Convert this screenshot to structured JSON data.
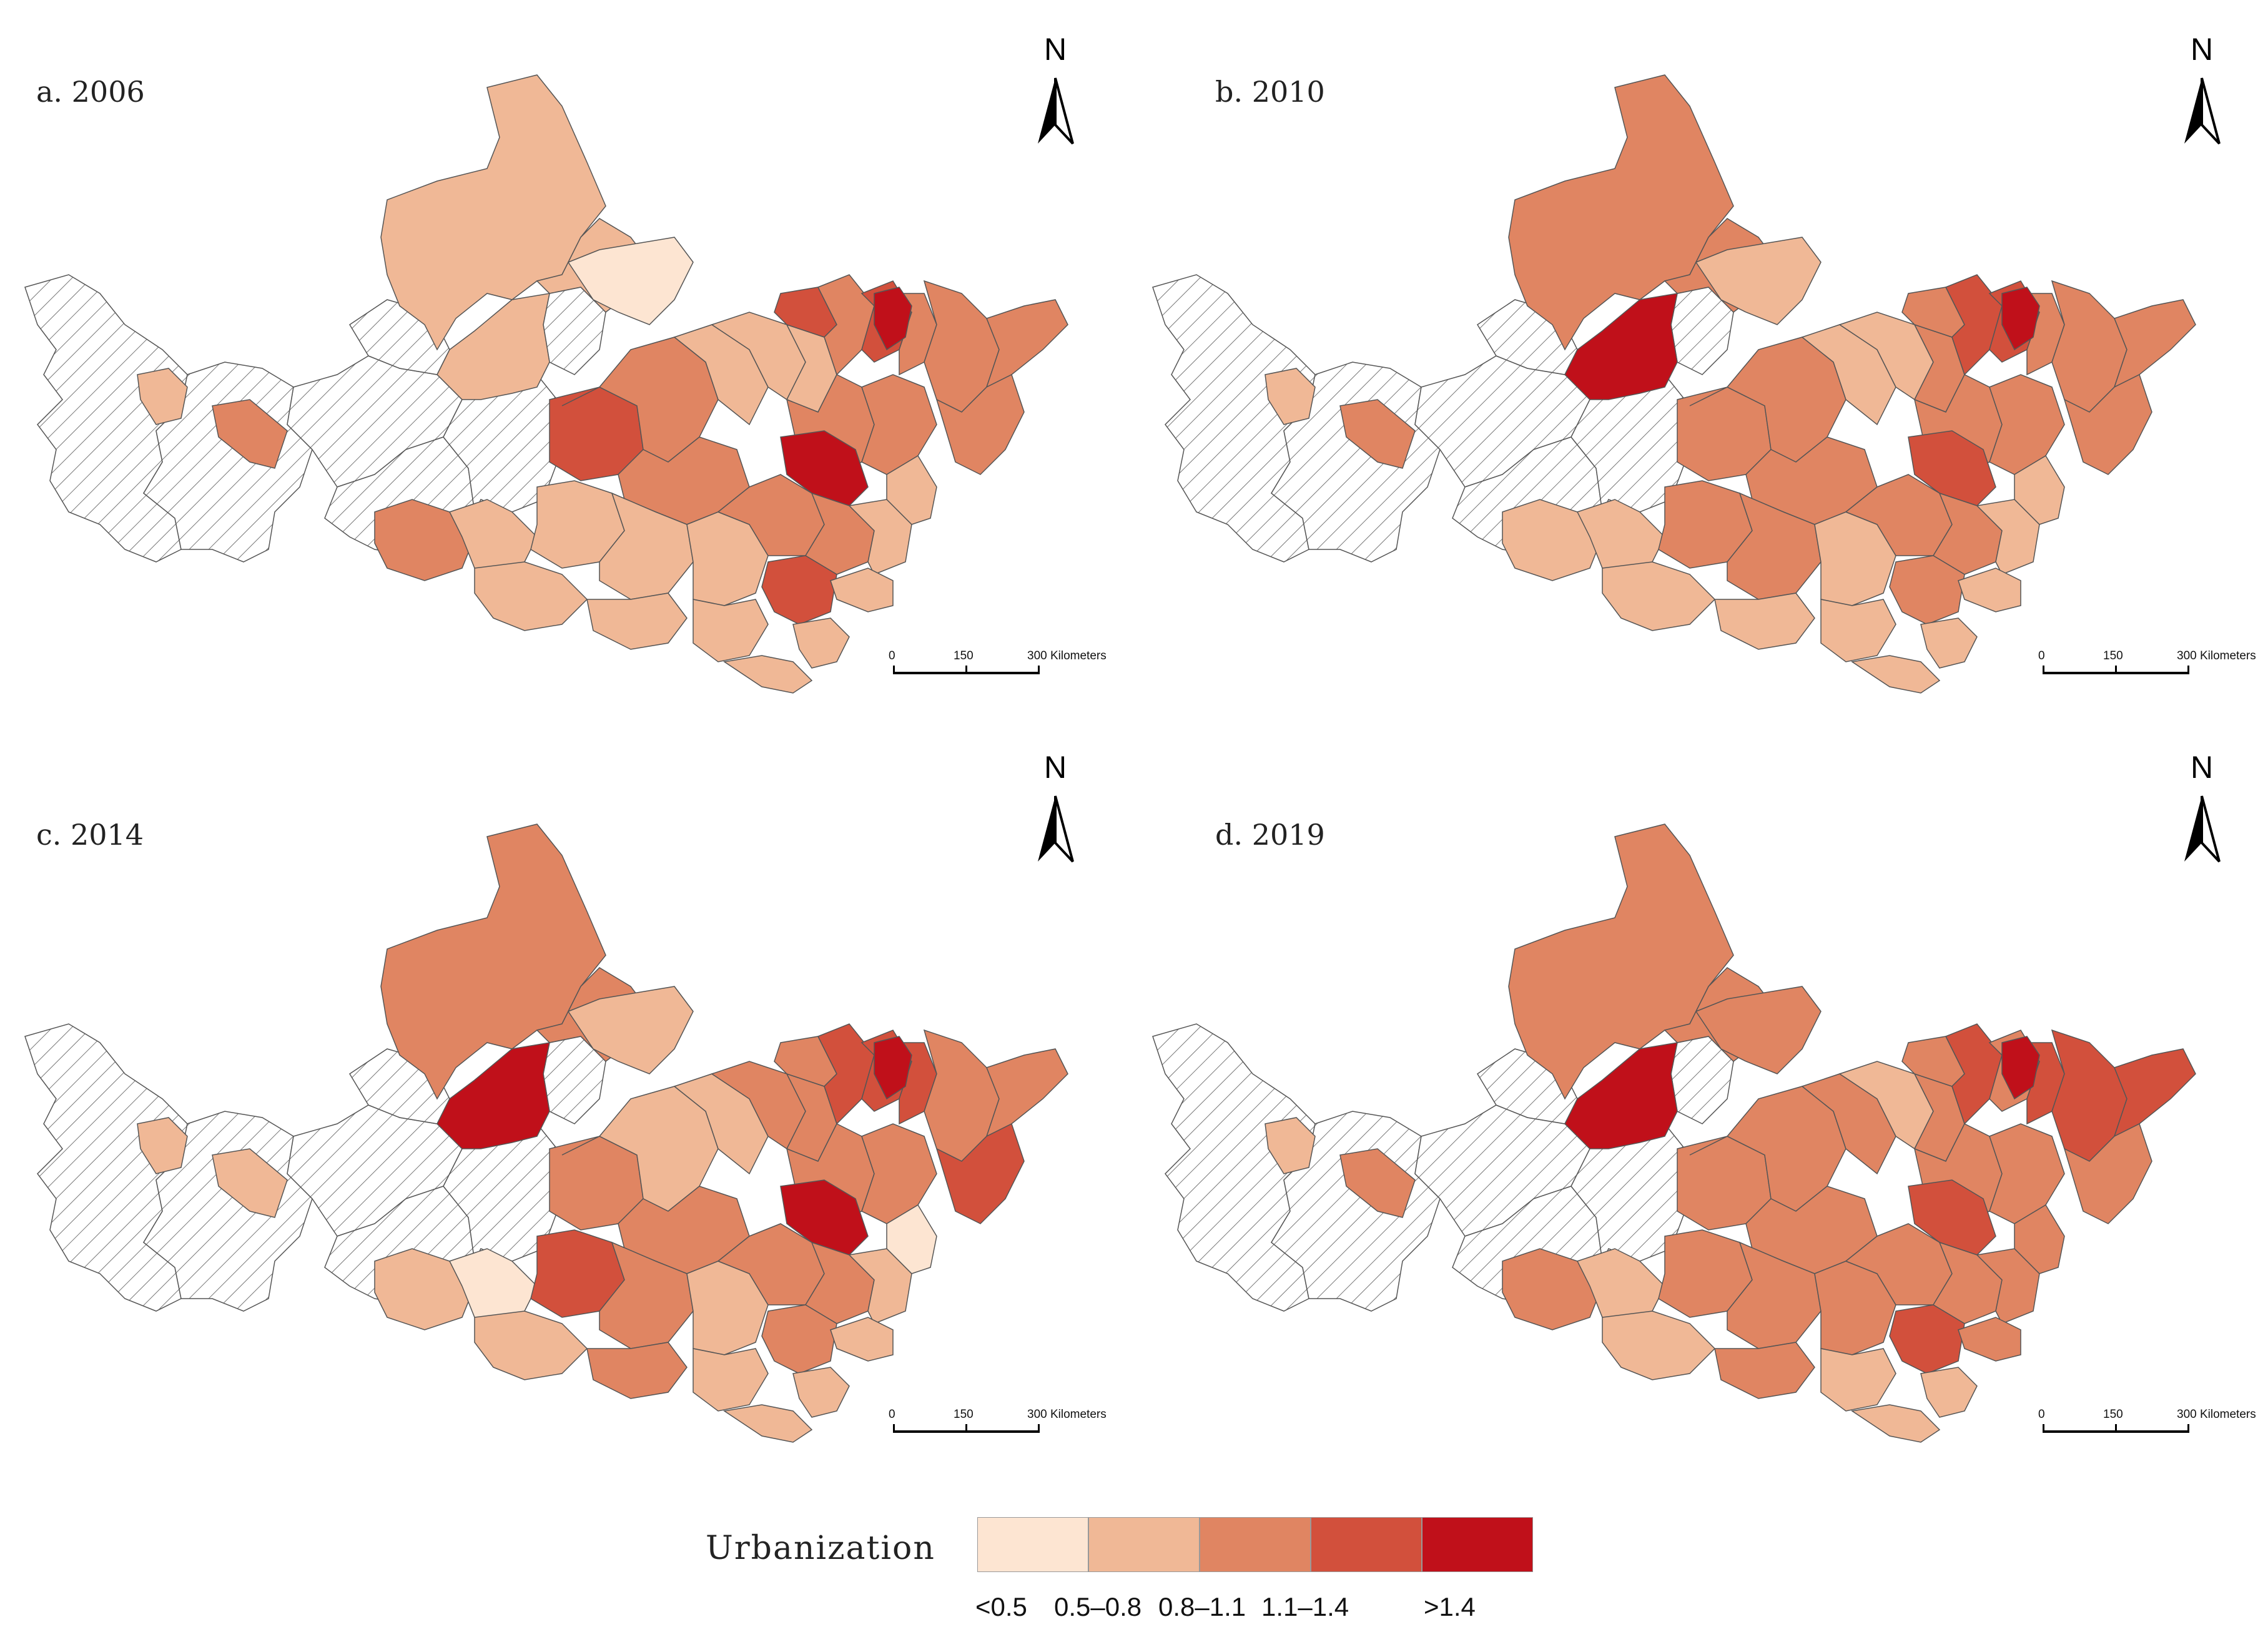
{
  "panels": [
    {
      "label": "a. 2006"
    },
    {
      "label": "b. 2010"
    },
    {
      "label": "c. 2014"
    },
    {
      "label": "d. 2019"
    }
  ],
  "north_arrow": {
    "letter": "N"
  },
  "scale_bar": {
    "ticks": [
      "0",
      "150",
      "300 Kilometers"
    ]
  },
  "legend": {
    "title": "Urbanization",
    "classes": [
      {
        "label": "<0.5",
        "color": "#fde5d2"
      },
      {
        "label": "0.5–0.8",
        "color": "#f0b896"
      },
      {
        "label": "0.8–1.1",
        "color": "#e08562"
      },
      {
        "label": "1.1–1.4",
        "color": "#d2503c"
      },
      {
        "label": ">1.4",
        "color": "#c0101a"
      }
    ],
    "no_data_pattern": "diagonal-hatch"
  }
}
